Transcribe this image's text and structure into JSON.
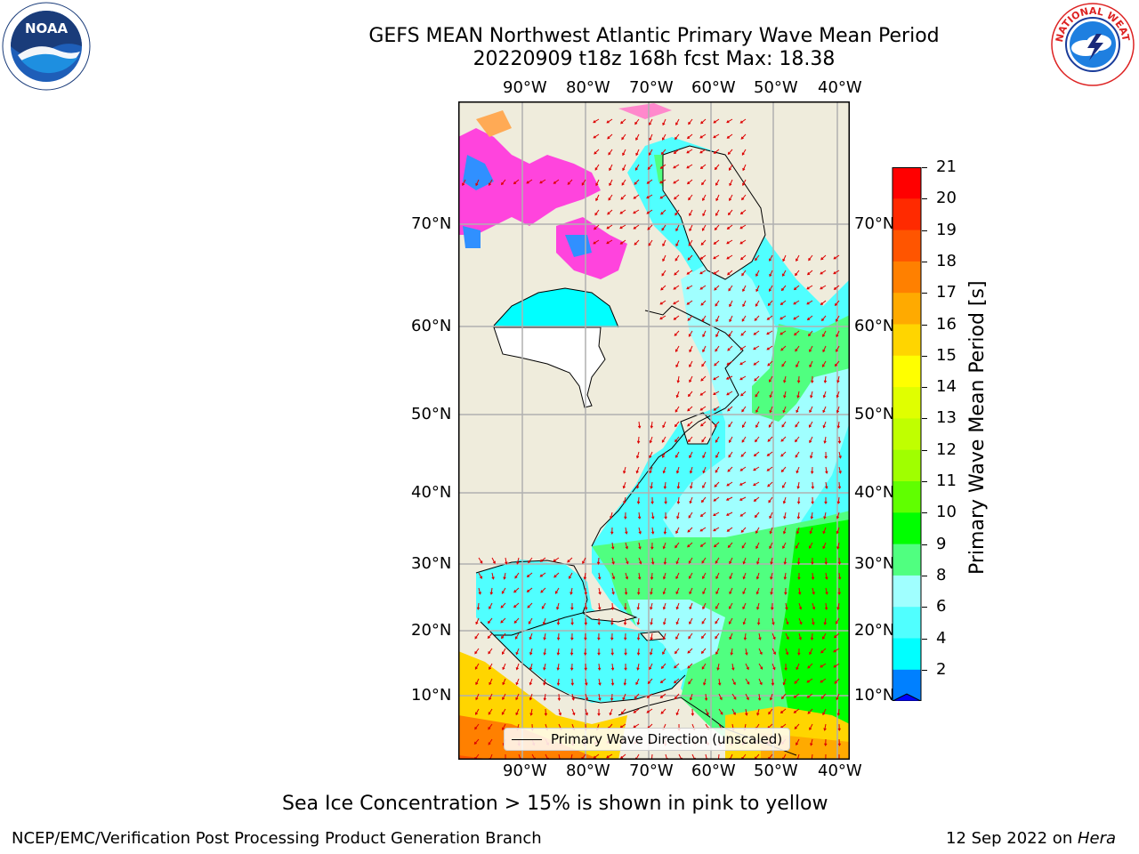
{
  "title_line1": "GEFS MEAN Northwest Atlantic Primary Wave Mean Period",
  "title_line2": "20220909 t18z 168h fcst   Max: 18.38",
  "lon_ticks": [
    "90°W",
    "80°W",
    "70°W",
    "60°W",
    "50°W",
    "40°W"
  ],
  "lat_ticks": [
    "70°N",
    "60°N",
    "50°N",
    "40°N",
    "30°N",
    "20°N",
    "10°N"
  ],
  "legend_label": "Primary Wave Direction (unscaled)",
  "colorbar": {
    "label": "Primary Wave Mean Period [s]",
    "ticks": [
      "21",
      "20",
      "19",
      "18",
      "17",
      "16",
      "15",
      "14",
      "13",
      "12",
      "11",
      "10",
      "9",
      "8",
      "6",
      "4",
      "2"
    ],
    "colors": [
      "#ff0000",
      "#ff2a00",
      "#ff5500",
      "#ff8000",
      "#ffaa00",
      "#ffd500",
      "#ffff00",
      "#e0ff00",
      "#c0ff00",
      "#a0ff00",
      "#60ff00",
      "#00ff00",
      "#50ff80",
      "#a0ffff",
      "#50ffff",
      "#00ffff",
      "#0080ff"
    ],
    "underflow_color": "#0000ff"
  },
  "caption": "Sea Ice Concentration > 15% is shown in pink to yellow",
  "footer_left": "NCEP/EMC/Verification Post Processing Product Generation Branch",
  "footer_right_date": "12 Sep 2022 on ",
  "footer_right_host": "Hera",
  "logo_left": "NOAA",
  "logo_right_text": "NATIONAL WEATHER SERVICE"
}
